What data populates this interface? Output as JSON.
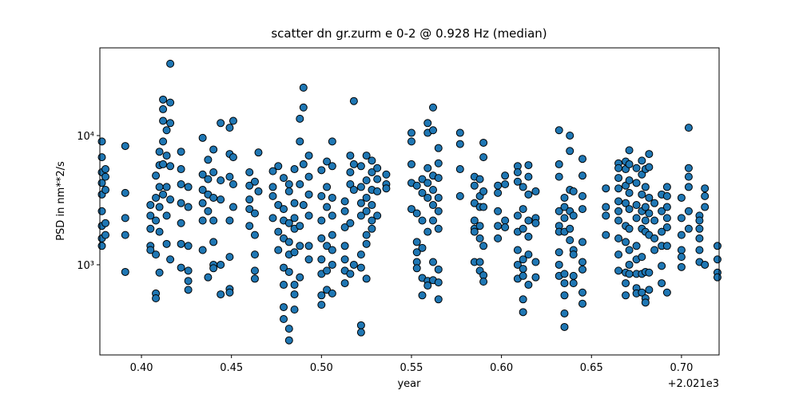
{
  "chart_data": {
    "type": "scatter",
    "title": "scatter dn gr.zurm e 0-2 @ 0.928 Hz (median)",
    "x_label": "year",
    "y_label": "PSD in nm**2/s",
    "x_offset_text": "+2.021e3",
    "color": "#1f77b4",
    "edge_color": "#000000",
    "y_log": true,
    "xlim": [
      0.3769,
      0.7209
    ],
    "ylim": [
      200.5,
      47750
    ],
    "xticks": [
      {
        "value": 0.4,
        "label": "0.40"
      },
      {
        "value": 0.45,
        "label": "0.45"
      },
      {
        "value": 0.5,
        "label": "0.50"
      },
      {
        "value": 0.55,
        "label": "0.55"
      },
      {
        "value": 0.6,
        "label": "0.60"
      },
      {
        "value": 0.65,
        "label": "0.65"
      },
      {
        "value": 0.7,
        "label": "0.70"
      }
    ],
    "yticks": [
      {
        "value": 1000,
        "label": "10³"
      },
      {
        "value": 10000,
        "label": "10⁴"
      }
    ],
    "x": [
      0.378,
      0.378,
      0.378,
      0.378,
      0.378,
      0.378,
      0.378,
      0.378,
      0.378,
      0.38,
      0.38,
      0.38,
      0.38,
      0.38,
      0.391,
      0.391,
      0.391,
      0.391,
      0.391,
      0.405,
      0.405,
      0.405,
      0.405,
      0.405,
      0.408,
      0.408,
      0.408,
      0.408,
      0.408,
      0.408,
      0.41,
      0.41,
      0.41,
      0.41,
      0.41,
      0.41,
      0.412,
      0.412,
      0.412,
      0.412,
      0.412,
      0.412,
      0.414,
      0.414,
      0.414,
      0.414,
      0.414,
      0.416,
      0.416,
      0.416,
      0.416,
      0.416,
      0.416,
      0.422,
      0.422,
      0.422,
      0.422,
      0.422,
      0.422,
      0.422,
      0.426,
      0.426,
      0.426,
      0.426,
      0.426,
      0.426,
      0.434,
      0.434,
      0.434,
      0.434,
      0.434,
      0.434,
      0.437,
      0.437,
      0.437,
      0.437,
      0.437,
      0.44,
      0.44,
      0.44,
      0.44,
      0.44,
      0.44,
      0.44,
      0.444,
      0.444,
      0.444,
      0.444,
      0.444,
      0.449,
      0.449,
      0.449,
      0.449,
      0.449,
      0.449,
      0.449,
      0.451,
      0.451,
      0.451,
      0.451,
      0.46,
      0.46,
      0.46,
      0.46,
      0.46,
      0.463,
      0.463,
      0.463,
      0.463,
      0.463,
      0.463,
      0.465,
      0.465,
      0.473,
      0.473,
      0.473,
      0.473,
      0.476,
      0.476,
      0.476,
      0.476,
      0.479,
      0.479,
      0.479,
      0.479,
      0.479,
      0.479,
      0.479,
      0.479,
      0.482,
      0.482,
      0.482,
      0.482,
      0.482,
      0.482,
      0.482,
      0.482,
      0.485,
      0.485,
      0.485,
      0.485,
      0.485,
      0.485,
      0.485,
      0.485,
      0.488,
      0.488,
      0.488,
      0.488,
      0.488,
      0.488,
      0.49,
      0.49,
      0.49,
      0.49,
      0.493,
      0.493,
      0.493,
      0.493,
      0.493,
      0.493,
      0.5,
      0.5,
      0.5,
      0.5,
      0.5,
      0.5,
      0.5,
      0.5,
      0.503,
      0.503,
      0.503,
      0.503,
      0.503,
      0.503,
      0.506,
      0.506,
      0.506,
      0.506,
      0.506,
      0.506,
      0.506,
      0.506,
      0.513,
      0.513,
      0.513,
      0.513,
      0.513,
      0.513,
      0.513,
      0.516,
      0.516,
      0.516,
      0.516,
      0.516,
      0.518,
      0.518,
      0.518,
      0.518,
      0.522,
      0.522,
      0.522,
      0.522,
      0.522,
      0.522,
      0.522,
      0.522,
      0.525,
      0.525,
      0.525,
      0.525,
      0.525,
      0.525,
      0.525,
      0.528,
      0.528,
      0.528,
      0.528,
      0.528,
      0.528,
      0.531,
      0.531,
      0.531,
      0.531,
      0.536,
      0.536,
      0.536,
      0.55,
      0.55,
      0.55,
      0.55,
      0.55,
      0.553,
      0.553,
      0.553,
      0.553,
      0.553,
      0.553,
      0.556,
      0.556,
      0.556,
      0.556,
      0.556,
      0.556,
      0.559,
      0.559,
      0.559,
      0.559,
      0.559,
      0.559,
      0.559,
      0.559,
      0.562,
      0.562,
      0.562,
      0.562,
      0.562,
      0.562,
      0.562,
      0.562,
      0.565,
      0.565,
      0.565,
      0.565,
      0.565,
      0.565,
      0.565,
      0.565,
      0.565,
      0.577,
      0.577,
      0.577,
      0.577,
      0.585,
      0.585,
      0.585,
      0.585,
      0.585,
      0.585,
      0.585,
      0.588,
      0.588,
      0.588,
      0.588,
      0.588,
      0.588,
      0.588,
      0.59,
      0.59,
      0.59,
      0.59,
      0.59,
      0.59,
      0.59,
      0.598,
      0.598,
      0.598,
      0.598,
      0.598,
      0.602,
      0.602,
      0.602,
      0.602,
      0.609,
      0.609,
      0.609,
      0.609,
      0.609,
      0.609,
      0.609,
      0.609,
      0.612,
      0.612,
      0.612,
      0.612,
      0.612,
      0.612,
      0.612,
      0.612,
      0.615,
      0.615,
      0.615,
      0.615,
      0.615,
      0.615,
      0.615,
      0.619,
      0.619,
      0.619,
      0.619,
      0.619,
      0.632,
      0.632,
      0.632,
      0.632,
      0.632,
      0.632,
      0.632,
      0.632,
      0.632,
      0.635,
      0.635,
      0.635,
      0.635,
      0.635,
      0.635,
      0.635,
      0.635,
      0.635,
      0.638,
      0.638,
      0.638,
      0.638,
      0.638,
      0.638,
      0.64,
      0.64,
      0.64,
      0.64,
      0.64,
      0.64,
      0.645,
      0.645,
      0.645,
      0.645,
      0.645,
      0.645,
      0.645,
      0.645,
      0.645,
      0.658,
      0.658,
      0.658,
      0.658,
      0.665,
      0.665,
      0.665,
      0.665,
      0.665,
      0.665,
      0.665,
      0.665,
      0.665,
      0.665,
      0.669,
      0.669,
      0.669,
      0.669,
      0.669,
      0.669,
      0.669,
      0.669,
      0.669,
      0.671,
      0.671,
      0.671,
      0.671,
      0.671,
      0.671,
      0.671,
      0.671,
      0.671,
      0.675,
      0.675,
      0.675,
      0.675,
      0.675,
      0.675,
      0.675,
      0.675,
      0.675,
      0.678,
      0.678,
      0.678,
      0.678,
      0.678,
      0.678,
      0.678,
      0.678,
      0.68,
      0.68,
      0.68,
      0.68,
      0.68,
      0.68,
      0.68,
      0.68,
      0.682,
      0.682,
      0.682,
      0.682,
      0.682,
      0.682,
      0.682,
      0.685,
      0.685,
      0.685,
      0.685,
      0.689,
      0.689,
      0.689,
      0.689,
      0.689,
      0.689,
      0.692,
      0.692,
      0.692,
      0.692,
      0.692,
      0.692,
      0.692,
      0.7,
      0.7,
      0.7,
      0.7,
      0.7,
      0.7,
      0.704,
      0.704,
      0.704,
      0.704,
      0.704,
      0.704,
      0.71,
      0.71,
      0.71,
      0.71,
      0.71,
      0.71,
      0.713,
      0.713,
      0.713,
      0.713,
      0.72,
      0.72,
      0.72,
      0.72
    ],
    "values": [
      9000,
      6800,
      5200,
      4300,
      3500,
      2600,
      2000,
      1600,
      1400,
      5500,
      4800,
      3800,
      2100,
      1700,
      8300,
      3600,
      2300,
      1700,
      880,
      2900,
      2400,
      1900,
      1400,
      1300,
      4900,
      3300,
      2200,
      1200,
      600,
      550,
      7500,
      5900,
      4000,
      2800,
      1800,
      870,
      19000,
      16000,
      13000,
      9000,
      6000,
      3500,
      11000,
      7000,
      4000,
      2400,
      1450,
      36000,
      18000,
      12500,
      5800,
      3200,
      1100,
      7500,
      5500,
      4200,
      3000,
      2100,
      1450,
      950,
      4000,
      2800,
      1400,
      900,
      750,
      640,
      9600,
      5000,
      3800,
      3000,
      2200,
      1300,
      6500,
      4600,
      3500,
      2600,
      800,
      7800,
      5200,
      3300,
      2200,
      1500,
      1000,
      940,
      12500,
      4500,
      3200,
      1000,
      590,
      11500,
      7200,
      4800,
      2200,
      1150,
      650,
      610,
      13000,
      6800,
      4200,
      2800,
      5200,
      4100,
      3200,
      2700,
      2000,
      4400,
      2500,
      1700,
      1200,
      900,
      780,
      7400,
      3700,
      5300,
      4000,
      3400,
      2300,
      5800,
      2900,
      1800,
      1300,
      4700,
      2700,
      2200,
      1600,
      950,
      700,
      470,
      380,
      4200,
      3700,
      2100,
      1500,
      1200,
      880,
      320,
      260,
      5500,
      3000,
      2300,
      1900,
      1250,
      700,
      590,
      450,
      13500,
      9000,
      4200,
      2000,
      1400,
      800,
      23500,
      16500,
      6000,
      2900,
      7000,
      4800,
      3500,
      2400,
      1400,
      1100,
      5400,
      3400,
      2200,
      1600,
      1100,
      850,
      580,
      490,
      6300,
      4000,
      2800,
      1400,
      900,
      640,
      9000,
      5800,
      3300,
      2400,
      1700,
      1300,
      1000,
      600,
      3100,
      2600,
      1950,
      1400,
      1100,
      900,
      720,
      7000,
      5200,
      4200,
      2100,
      850,
      18500,
      6000,
      3800,
      1000,
      5800,
      4000,
      3000,
      2400,
      1200,
      950,
      340,
      300,
      7000,
      4500,
      3300,
      2600,
      1700,
      1450,
      780,
      6400,
      5200,
      3800,
      2900,
      2200,
      1900,
      5600,
      4600,
      3700,
      2400,
      5000,
      4200,
      3900,
      10500,
      9000,
      6000,
      4300,
      2700,
      4100,
      2500,
      1500,
      1250,
      1050,
      940,
      4600,
      3600,
      2200,
      1350,
      790,
      580,
      12500,
      10500,
      5600,
      4300,
      3300,
      1800,
      750,
      690,
      16500,
      11000,
      4900,
      3800,
      2900,
      2200,
      1050,
      760,
      8000,
      6100,
      4700,
      3300,
      2600,
      1900,
      920,
      730,
      540,
      10500,
      8600,
      5500,
      3400,
      4800,
      4100,
      3000,
      2200,
      1900,
      1800,
      1050,
      4600,
      3400,
      2800,
      2000,
      1600,
      1050,
      900,
      8800,
      6800,
      3700,
      2800,
      1400,
      830,
      740,
      4100,
      3600,
      2600,
      2000,
      1600,
      4900,
      4200,
      2200,
      1950,
      5800,
      5200,
      4400,
      2400,
      1800,
      1300,
      1000,
      780,
      4000,
      2700,
      1900,
      1100,
      930,
      820,
      540,
      430,
      5900,
      4800,
      3500,
      2200,
      1650,
      1200,
      700,
      3700,
      2300,
      2100,
      1050,
      800,
      11000,
      6000,
      4800,
      2600,
      2000,
      1800,
      1250,
      1000,
      820,
      3300,
      2800,
      2300,
      1800,
      850,
      720,
      580,
      420,
      330,
      10000,
      7600,
      3800,
      2600,
      1900,
      1550,
      3700,
      2400,
      1300,
      1200,
      820,
      720,
      6600,
      4900,
      3400,
      2700,
      1500,
      1050,
      920,
      610,
      500,
      3900,
      2800,
      2400,
      1700,
      6100,
      5600,
      4700,
      3900,
      3100,
      2600,
      2200,
      1600,
      1200,
      900,
      6300,
      5500,
      4100,
      3000,
      2000,
      1500,
      870,
      720,
      580,
      7700,
      6000,
      4500,
      3600,
      2700,
      1900,
      1300,
      1000,
      850,
      5600,
      4300,
      2900,
      2300,
      1400,
      1100,
      850,
      660,
      600,
      6400,
      5000,
      3500,
      2600,
      1900,
      1150,
      850,
      610,
      5500,
      4000,
      2800,
      2200,
      1800,
      880,
      550,
      510,
      7200,
      5700,
      3300,
      2500,
      1700,
      870,
      640,
      3000,
      2200,
      1600,
      1300,
      3500,
      2600,
      1800,
      1400,
      980,
      720,
      4000,
      3400,
      2800,
      2300,
      1950,
      1400,
      610,
      3300,
      2300,
      1700,
      1300,
      1150,
      960,
      11500,
      5600,
      4800,
      4000,
      2600,
      1900,
      2400,
      2200,
      1900,
      1600,
      1300,
      1050,
      3900,
      3400,
      2800,
      1000,
      1400,
      1100,
      870,
      800
    ]
  }
}
